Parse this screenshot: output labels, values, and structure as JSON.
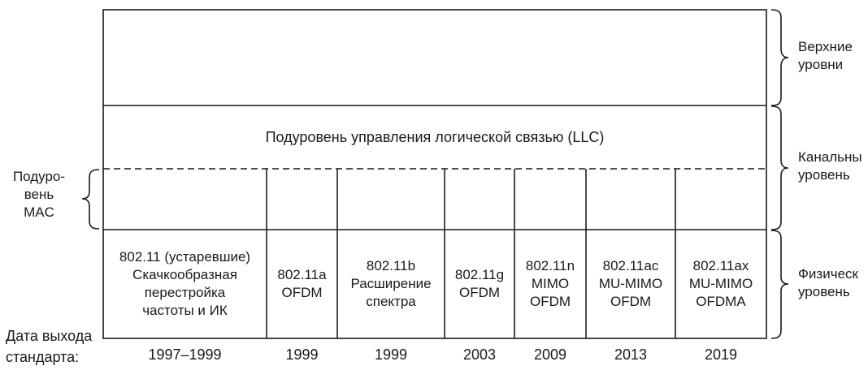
{
  "layers": {
    "upper_label": [
      "Верхние",
      "уровни"
    ],
    "link_label": [
      "Канальны",
      "уровень"
    ],
    "physical_label": [
      "Физическ",
      "уровень"
    ]
  },
  "llc": {
    "text": "Подуровень управления логической связью (LLC)"
  },
  "mac": {
    "label": [
      "Подуро-",
      "вень",
      "MAC"
    ]
  },
  "release_date_label": [
    "Дата выхода",
    "стандарта:"
  ],
  "standards": [
    {
      "lines": [
        "802.11 (устаревшие)",
        "Скачкообразная",
        "перестройка",
        "частоты и ИК"
      ],
      "year": "1997–1999"
    },
    {
      "lines": [
        "802.11a",
        "OFDM"
      ],
      "year": "1999"
    },
    {
      "lines": [
        "802.11b",
        "Расширение",
        "спектра"
      ],
      "year": "1999"
    },
    {
      "lines": [
        "802.11g",
        "OFDM"
      ],
      "year": "2003"
    },
    {
      "lines": [
        "802.11n",
        "MIMO",
        "OFDM"
      ],
      "year": "2009"
    },
    {
      "lines": [
        "802.11ac",
        "MU-MIMO",
        "OFDM"
      ],
      "year": "2013"
    },
    {
      "lines": [
        "802.11ax",
        "MU-MIMO",
        "OFDMA"
      ],
      "year": "2019"
    }
  ]
}
